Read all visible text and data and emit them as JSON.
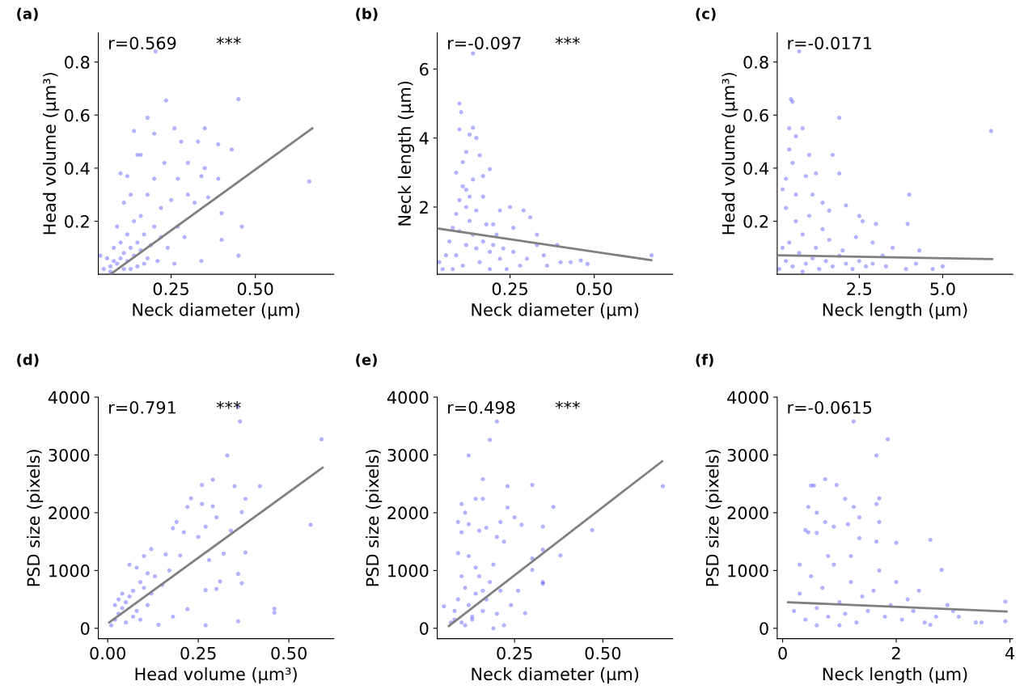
{
  "chart_data": [
    {
      "type": "scatter",
      "title": "(a)",
      "xlabel": "Neck diameter (μm)",
      "ylabel": "Head volume (μm³)",
      "xlim": [
        0.034,
        0.733
      ],
      "ylim": [
        0.0,
        0.91
      ],
      "xticks": [
        0.25,
        {
          "value": 0.5,
          "label": "0.50"
        }
      ],
      "yticks": [
        0.2,
        0.4,
        0.6,
        0.8
      ],
      "annotations": [
        "r=0.569",
        "***"
      ],
      "series": [
        {
          "type": "scatter",
          "marker": "circle",
          "color": "#0000ff",
          "x": [
            0.204,
            0.235,
            0.45,
            0.18,
            0.2,
            0.14,
            0.26,
            0.35,
            0.28,
            0.33,
            0.39,
            0.43,
            0.15,
            0.16,
            0.23,
            0.3,
            0.35,
            0.66,
            0.39,
            0.34,
            0.27,
            0.2,
            0.1,
            0.12,
            0.4,
            0.46,
            0.4,
            0.45,
            0.34,
            0.32,
            0.36,
            0.3,
            0.25,
            0.22,
            0.18,
            0.13,
            0.11,
            0.27,
            0.29,
            0.24,
            0.21,
            0.26,
            0.05,
            0.07,
            0.08,
            0.09,
            0.1,
            0.11,
            0.12,
            0.13,
            0.14,
            0.15,
            0.16,
            0.17,
            0.18,
            0.19,
            0.12,
            0.14,
            0.16,
            0.1,
            0.08,
            0.06,
            0.11,
            0.15,
            0.2,
            0.22,
            0.09,
            0.13,
            0.17,
            0.07,
            0.04
          ],
          "values": [
            0.84,
            0.655,
            0.66,
            0.59,
            0.53,
            0.54,
            0.55,
            0.55,
            0.5,
            0.5,
            0.49,
            0.47,
            0.45,
            0.45,
            0.42,
            0.42,
            0.4,
            0.35,
            0.36,
            0.37,
            0.36,
            0.36,
            0.38,
            0.37,
            0.23,
            0.18,
            0.13,
            0.07,
            0.05,
            0.27,
            0.29,
            0.3,
            0.28,
            0.25,
            0.3,
            0.3,
            0.27,
            0.18,
            0.14,
            0.1,
            0.05,
            0.04,
            0.02,
            0.03,
            0.05,
            0.04,
            0.06,
            0.08,
            0.05,
            0.1,
            0.07,
            0.12,
            0.09,
            0.15,
            0.06,
            0.11,
            0.15,
            0.2,
            0.22,
            0.12,
            0.1,
            0.06,
            0.02,
            0.03,
            0.18,
            0.14,
            0.18,
            0.02,
            0.04,
            0.01,
            0.07
          ]
        },
        {
          "type": "line",
          "color": "#808080",
          "x": [
            0.07,
            0.669
          ],
          "values": [
            0.0,
            0.55
          ]
        }
      ]
    },
    {
      "type": "scatter",
      "title": "(b)",
      "xlabel": "Neck diameter (μm)",
      "ylabel": "Neck length (μm)",
      "xlim": [
        0.034,
        0.733
      ],
      "ylim": [
        0.05,
        7.05
      ],
      "xticks": [
        0.25,
        {
          "value": 0.5,
          "label": "0.50"
        }
      ],
      "yticks": [
        2,
        4,
        6
      ],
      "annotations": [
        "r=-0.097",
        "***"
      ],
      "series": [
        {
          "type": "scatter",
          "marker": "circle",
          "color": "#0000ff",
          "x": [
            0.14,
            0.1,
            0.105,
            0.14,
            0.13,
            0.15,
            0.1,
            0.12,
            0.16,
            0.11,
            0.19,
            0.17,
            0.09,
            0.14,
            0.12,
            0.25,
            0.29,
            0.31,
            0.22,
            0.2,
            0.26,
            0.33,
            0.39,
            0.4,
            0.43,
            0.46,
            0.48,
            0.67,
            0.35,
            0.36,
            0.3,
            0.28,
            0.24,
            0.33,
            0.05,
            0.06,
            0.07,
            0.08,
            0.09,
            0.1,
            0.11,
            0.12,
            0.13,
            0.14,
            0.15,
            0.16,
            0.17,
            0.18,
            0.19,
            0.2,
            0.21,
            0.22,
            0.23,
            0.11,
            0.09,
            0.12,
            0.13,
            0.1,
            0.08,
            0.04,
            0.15,
            0.17,
            0.26,
            0.19
          ],
          "values": [
            6.45,
            5.0,
            4.75,
            4.3,
            4.1,
            4.0,
            4.25,
            3.6,
            3.5,
            3.3,
            3.1,
            2.9,
            3.0,
            2.8,
            2.5,
            2.0,
            1.9,
            1.7,
            1.9,
            1.5,
            1.4,
            1.2,
            0.9,
            0.4,
            0.4,
            0.45,
            0.35,
            0.6,
            0.6,
            0.3,
            0.5,
            0.3,
            0.2,
            0.9,
            0.2,
            0.6,
            1.0,
            1.4,
            1.8,
            2.2,
            2.6,
            2.0,
            1.6,
            1.2,
            0.8,
            0.4,
            1.0,
            1.5,
            0.7,
            0.9,
            1.2,
            0.5,
            0.8,
            0.3,
            0.6,
            0.9,
            2.3,
            1.3,
            0.2,
            0.4,
            1.9,
            2.3,
            0.7,
            0.2
          ]
        },
        {
          "type": "line",
          "color": "#808080",
          "x": [
            0.034,
            0.669
          ],
          "values": [
            1.38,
            0.46
          ]
        }
      ]
    },
    {
      "type": "scatter",
      "title": "(c)",
      "xlabel": "Neck length (μm)",
      "ylabel": "Head volume (μm³)",
      "xlim": [
        0.04,
        7.1
      ],
      "ylim": [
        0.0,
        0.91
      ],
      "xticks": [
        2.5,
        {
          "value": 5,
          "label": "5.0"
        }
      ],
      "yticks": [
        0.2,
        0.4,
        0.6,
        0.8
      ],
      "annotations": [
        "r=-0.0171"
      ],
      "series": [
        {
          "type": "scatter",
          "marker": "circle",
          "color": "#0000ff",
          "x": [
            0.7,
            0.45,
            0.5,
            1.9,
            0.4,
            0.8,
            0.6,
            6.45,
            1.7,
            0.4,
            1.0,
            0.5,
            4.0,
            3.95,
            4.3,
            4.7,
            5.0,
            4.2,
            3.9,
            3.5,
            3.2,
            2.5,
            2.1,
            1.9,
            1.2,
            0.2,
            0.3,
            0.9,
            0.6,
            1.1,
            1.4,
            1.6,
            2.6,
            3.0,
            2.9,
            2.4,
            0.1,
            0.3,
            0.5,
            0.7,
            0.9,
            1.1,
            1.3,
            1.5,
            1.7,
            1.9,
            2.1,
            2.3,
            2.5,
            2.7,
            2.9,
            0.4,
            0.8,
            1.2,
            1.6,
            2.0,
            0.6,
            1.0,
            0.2,
            1.4,
            0.3,
            3.3,
            0.8
          ],
          "values": [
            0.84,
            0.66,
            0.65,
            0.59,
            0.55,
            0.55,
            0.52,
            0.54,
            0.45,
            0.47,
            0.45,
            0.42,
            0.3,
            0.19,
            0.09,
            0.02,
            0.03,
            0.04,
            0.02,
            0.1,
            0.07,
            0.22,
            0.26,
            0.38,
            0.38,
            0.32,
            0.36,
            0.37,
            0.3,
            0.3,
            0.27,
            0.24,
            0.2,
            0.19,
            0.12,
            0.14,
            0.02,
            0.05,
            0.03,
            0.08,
            0.04,
            0.06,
            0.02,
            0.05,
            0.03,
            0.07,
            0.04,
            0.02,
            0.05,
            0.03,
            0.04,
            0.12,
            0.15,
            0.1,
            0.13,
            0.09,
            0.2,
            0.22,
            0.1,
            0.17,
            0.25,
            0.03,
            0.01
          ]
        },
        {
          "type": "line",
          "color": "#808080",
          "x": [
            0.04,
            6.48
          ],
          "values": [
            0.072,
            0.057
          ]
        }
      ]
    },
    {
      "type": "scatter",
      "title": "(d)",
      "xlabel": "Head volume (μm³)",
      "ylabel": "PSD size (pixels)",
      "xlim": [
        -0.026,
        0.624
      ],
      "ylim": [
        -180,
        4000
      ],
      "xticks": [
        {
          "value": 0,
          "label": "0.00"
        },
        0.25,
        {
          "value": 0.5,
          "label": "0.50"
        }
      ],
      "yticks": [
        0,
        1000,
        2000,
        3000,
        4000
      ],
      "annotations": [
        "r=0.791",
        "***"
      ],
      "series": [
        {
          "type": "scatter",
          "marker": "circle",
          "color": "#0000ff",
          "x": [
            0.36,
            0.365,
            0.59,
            0.33,
            0.29,
            0.26,
            0.35,
            0.42,
            0.23,
            0.37,
            0.38,
            0.26,
            0.29,
            0.22,
            0.56,
            0.27,
            0.3,
            0.34,
            0.19,
            0.21,
            0.25,
            0.18,
            0.12,
            0.16,
            0.2,
            0.28,
            0.38,
            0.32,
            0.31,
            0.36,
            0.37,
            0.3,
            0.27,
            0.46,
            0.46,
            0.36,
            0.27,
            0.22,
            0.18,
            0.14,
            0.01,
            0.02,
            0.03,
            0.04,
            0.05,
            0.06,
            0.07,
            0.08,
            0.09,
            0.1,
            0.11,
            0.12,
            0.13,
            0.15,
            0.17,
            0.05,
            0.03,
            0.07,
            0.02,
            0.04,
            0.06,
            0.09,
            0.11,
            0.08,
            0.1
          ],
          "values": [
            3830,
            3580,
            3270,
            2990,
            2570,
            2480,
            2460,
            2460,
            2250,
            2010,
            2240,
            2150,
            2110,
            2100,
            1790,
            1760,
            1920,
            1690,
            1840,
            1660,
            1580,
            1730,
            1370,
            1280,
            1260,
            1180,
            1310,
            1290,
            810,
            940,
            780,
            680,
            660,
            340,
            270,
            120,
            50,
            330,
            200,
            60,
            50,
            150,
            250,
            350,
            450,
            550,
            650,
            300,
            800,
            700,
            950,
            600,
            900,
            750,
            1000,
            100,
            500,
            200,
            400,
            600,
            1100,
            150,
            400,
            1050,
            1250
          ]
        },
        {
          "type": "line",
          "color": "#808080",
          "x": [
            0.004,
            0.593
          ],
          "values": [
            100,
            2780
          ]
        }
      ]
    },
    {
      "type": "scatter",
      "title": "(e)",
      "xlabel": "Neck diameter (μm)",
      "ylabel": "PSD size (pixels)",
      "xlim": [
        0.031,
        0.698
      ],
      "ylim": [
        -180,
        4000
      ],
      "xticks": [
        0.25,
        {
          "value": 0.5,
          "label": "0.50"
        }
      ],
      "yticks": [
        0,
        1000,
        2000,
        3000,
        4000
      ],
      "annotations": [
        "r=0.498",
        "***"
      ],
      "series": [
        {
          "type": "scatter",
          "marker": "circle",
          "color": "#0000ff",
          "x": [
            0.2,
            0.18,
            0.12,
            0.16,
            0.23,
            0.3,
            0.67,
            0.14,
            0.16,
            0.36,
            0.23,
            0.1,
            0.11,
            0.25,
            0.27,
            0.09,
            0.12,
            0.17,
            0.21,
            0.33,
            0.47,
            0.15,
            0.1,
            0.2,
            0.22,
            0.33,
            0.38,
            0.3,
            0.3,
            0.33,
            0.33,
            0.26,
            0.28,
            0.24,
            0.22,
            0.19,
            0.05,
            0.07,
            0.08,
            0.09,
            0.1,
            0.11,
            0.12,
            0.13,
            0.14,
            0.15,
            0.16,
            0.17,
            0.18,
            0.19,
            0.2,
            0.21,
            0.08,
            0.1,
            0.12,
            0.14,
            0.11,
            0.13,
            0.09,
            0.16
          ],
          "values": [
            3580,
            3260,
            2990,
            2580,
            2460,
            2480,
            2460,
            2240,
            2240,
            2100,
            2090,
            2150,
            2000,
            1920,
            1790,
            1840,
            1800,
            1740,
            1840,
            1760,
            1700,
            1690,
            1660,
            1580,
            1500,
            1360,
            1260,
            1010,
            1210,
            800,
            770,
            650,
            260,
            400,
            50,
            0,
            380,
            100,
            300,
            500,
            100,
            700,
            400,
            150,
            600,
            900,
            300,
            500,
            800,
            1100,
            250,
            650,
            150,
            900,
            1250,
            1050,
            50,
            200,
            1300,
            650
          ]
        },
        {
          "type": "line",
          "color": "#808080",
          "x": [
            0.064,
            0.668
          ],
          "values": [
            40,
            2890
          ]
        }
      ]
    },
    {
      "type": "scatter",
      "title": "(f)",
      "xlabel": "Neck length (μm)",
      "ylabel": "PSD size (pixels)",
      "xlim": [
        -0.096,
        4.05
      ],
      "ylim": [
        -180,
        4000
      ],
      "xticks": [
        0,
        2,
        4
      ],
      "yticks": [
        0,
        1000,
        2000,
        3000,
        4000
      ],
      "annotations": [
        "r=-0.0615"
      ],
      "series": [
        {
          "type": "scatter",
          "marker": "circle",
          "color": "#0000ff",
          "x": [
            1.25,
            1.85,
            1.65,
            0.75,
            0.5,
            0.55,
            0.95,
            1.1,
            1.7,
            1.25,
            0.45,
            1.65,
            0.6,
            1.35,
            0.75,
            1.15,
            0.9,
            1.7,
            0.4,
            0.45,
            0.6,
            1.35,
            1.65,
            2.0,
            2.6,
            2.8,
            3.92,
            3.92,
            3.5,
            3.4,
            3.1,
            2.9,
            3.0,
            2.7,
            2.6,
            0.2,
            0.3,
            0.4,
            0.5,
            0.6,
            0.7,
            0.8,
            0.9,
            1.0,
            1.1,
            1.2,
            1.3,
            1.4,
            1.5,
            1.6,
            1.7,
            1.8,
            1.9,
            2.0,
            2.1,
            2.2,
            2.3,
            2.4,
            2.5,
            0.3,
            0.8,
            1.2,
            1.0,
            0.6
          ],
          "values": [
            3580,
            3270,
            2990,
            2580,
            2470,
            2470,
            2480,
            2240,
            2250,
            2100,
            2100,
            2150,
            2000,
            1920,
            1840,
            1800,
            1760,
            1840,
            1700,
            1660,
            1650,
            1560,
            1500,
            1480,
            1530,
            1010,
            460,
            120,
            100,
            100,
            200,
            400,
            300,
            200,
            60,
            300,
            600,
            150,
            900,
            350,
            700,
            200,
            1100,
            450,
            250,
            800,
            100,
            550,
            300,
            650,
            1000,
            200,
            400,
            800,
            150,
            500,
            300,
            650,
            100,
            1100,
            1250,
            1250,
            50,
            50
          ]
        },
        {
          "type": "line",
          "color": "#808080",
          "x": [
            0.096,
            3.94
          ],
          "values": [
            450,
            290
          ]
        }
      ]
    }
  ]
}
